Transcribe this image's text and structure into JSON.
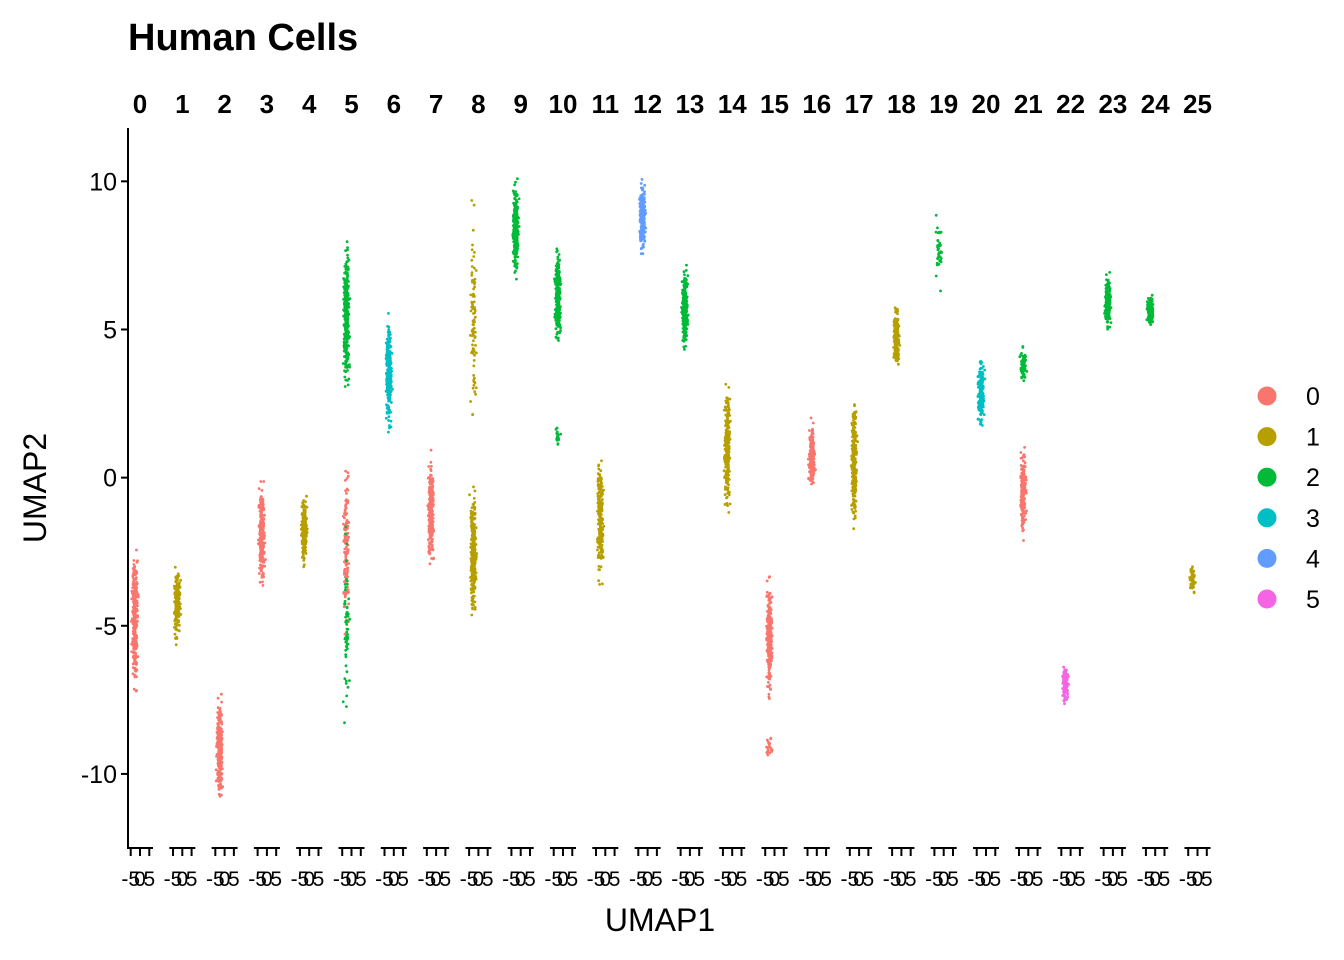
{
  "chart_data": {
    "type": "scatter",
    "title": "Human Cells",
    "xlabel": "UMAP1",
    "ylabel": "UMAP2",
    "ylim": [
      -12.5,
      11.8
    ],
    "y_ticks": [
      "-10",
      "-5",
      "0",
      "5",
      "10"
    ],
    "facet_x_ticks": [
      "-5",
      "0",
      "5"
    ],
    "facets": [
      "0",
      "1",
      "2",
      "3",
      "4",
      "5",
      "6",
      "7",
      "8",
      "9",
      "10",
      "11",
      "12",
      "13",
      "14",
      "15",
      "16",
      "17",
      "18",
      "19",
      "20",
      "21",
      "22",
      "23",
      "24",
      "25"
    ],
    "legend": [
      {
        "label": "0",
        "color": "#F8766D"
      },
      {
        "label": "1",
        "color": "#B79F00"
      },
      {
        "label": "2",
        "color": "#00BA38"
      },
      {
        "label": "3",
        "color": "#00BFC4"
      },
      {
        "label": "4",
        "color": "#619CFF"
      },
      {
        "label": "5",
        "color": "#F564E3"
      }
    ],
    "legend_position": "right",
    "grid": false,
    "clusters": [
      {
        "facet": 0,
        "group": 0,
        "ymin": -8.0,
        "ymax": -1.6,
        "n": 260
      },
      {
        "facet": 1,
        "group": 1,
        "ymin": -6.0,
        "ymax": -2.4,
        "n": 200
      },
      {
        "facet": 2,
        "group": 0,
        "ymin": -11.6,
        "ymax": -6.8,
        "n": 260
      },
      {
        "facet": 3,
        "group": 0,
        "ymin": -4.4,
        "ymax": 0.6,
        "n": 240
      },
      {
        "facet": 4,
        "group": 1,
        "ymin": -3.4,
        "ymax": -0.2,
        "n": 200
      },
      {
        "facet": 5,
        "group": 2,
        "ymin": 2.0,
        "ymax": 8.9,
        "n": 300
      },
      {
        "facet": 5,
        "group": 0,
        "ymin": -7.0,
        "ymax": 2.0,
        "n": 140
      },
      {
        "facet": 5,
        "group": 2,
        "ymin": -10.2,
        "ymax": 0.5,
        "n": 60
      },
      {
        "facet": 6,
        "group": 3,
        "ymin": 1.0,
        "ymax": 6.0,
        "n": 250
      },
      {
        "facet": 7,
        "group": 0,
        "ymin": -3.9,
        "ymax": 1.5,
        "n": 240
      },
      {
        "facet": 8,
        "group": 1,
        "ymin": -5.6,
        "ymax": 0.4,
        "n": 300
      },
      {
        "facet": 8,
        "group": 1,
        "ymin": 0.5,
        "ymax": 10.0,
        "n": 90
      },
      {
        "facet": 9,
        "group": 2,
        "ymin": 6.2,
        "ymax": 10.6,
        "n": 260
      },
      {
        "facet": 10,
        "group": 2,
        "ymin": 3.9,
        "ymax": 8.4,
        "n": 260
      },
      {
        "facet": 10,
        "group": 2,
        "ymin": 1.0,
        "ymax": 1.8,
        "n": 20
      },
      {
        "facet": 11,
        "group": 1,
        "ymin": -4.3,
        "ymax": 1.5,
        "n": 240
      },
      {
        "facet": 12,
        "group": 4,
        "ymin": 7.2,
        "ymax": 10.4,
        "n": 260
      },
      {
        "facet": 13,
        "group": 2,
        "ymin": 3.7,
        "ymax": 7.6,
        "n": 240
      },
      {
        "facet": 14,
        "group": 1,
        "ymin": -2.0,
        "ymax": 4.1,
        "n": 230
      },
      {
        "facet": 15,
        "group": 0,
        "ymin": -8.2,
        "ymax": -2.5,
        "n": 260
      },
      {
        "facet": 15,
        "group": 0,
        "ymin": -9.6,
        "ymax": -8.6,
        "n": 20
      },
      {
        "facet": 16,
        "group": 0,
        "ymin": -0.9,
        "ymax": 2.3,
        "n": 200
      },
      {
        "facet": 17,
        "group": 1,
        "ymin": -2.6,
        "ymax": 3.8,
        "n": 250
      },
      {
        "facet": 18,
        "group": 1,
        "ymin": 3.3,
        "ymax": 6.2,
        "n": 200
      },
      {
        "facet": 19,
        "group": 2,
        "ymin": 6.1,
        "ymax": 9.3,
        "n": 40
      },
      {
        "facet": 20,
        "group": 3,
        "ymin": 1.2,
        "ymax": 4.5,
        "n": 200
      },
      {
        "facet": 21,
        "group": 2,
        "ymin": 3.0,
        "ymax": 4.6,
        "n": 80
      },
      {
        "facet": 21,
        "group": 0,
        "ymin": -2.7,
        "ymax": 1.8,
        "n": 200
      },
      {
        "facet": 22,
        "group": 5,
        "ymin": -7.8,
        "ymax": -6.1,
        "n": 130
      },
      {
        "facet": 23,
        "group": 2,
        "ymin": 4.6,
        "ymax": 7.2,
        "n": 180
      },
      {
        "facet": 24,
        "group": 2,
        "ymin": 4.9,
        "ymax": 6.4,
        "n": 160
      },
      {
        "facet": 25,
        "group": 1,
        "ymin": -4.2,
        "ymax": -2.7,
        "n": 50
      }
    ]
  }
}
